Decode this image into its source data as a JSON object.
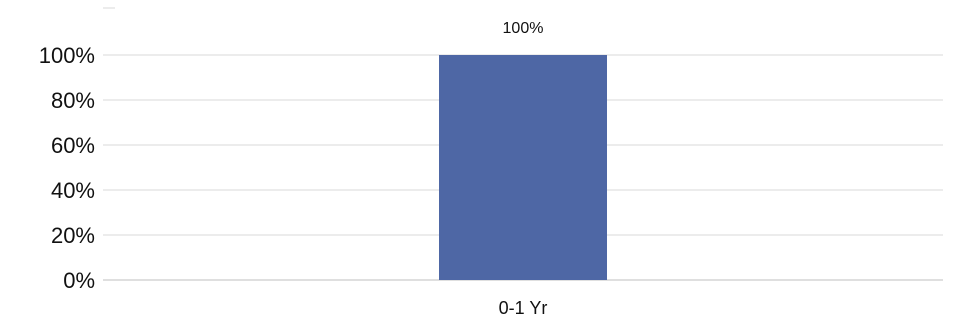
{
  "chart_data": {
    "type": "bar",
    "categories": [
      "0-1 Yr"
    ],
    "series": [
      {
        "values": [
          100
        ]
      }
    ],
    "data_labels": [
      "100%"
    ],
    "y_ticks": [
      "0%",
      "20%",
      "40%",
      "60%",
      "80%",
      "100%"
    ],
    "ylim": [
      0,
      100
    ],
    "grid": true,
    "legend": "none",
    "bar_color": "#4e67a5",
    "grid_color": "#d9d9d9"
  }
}
